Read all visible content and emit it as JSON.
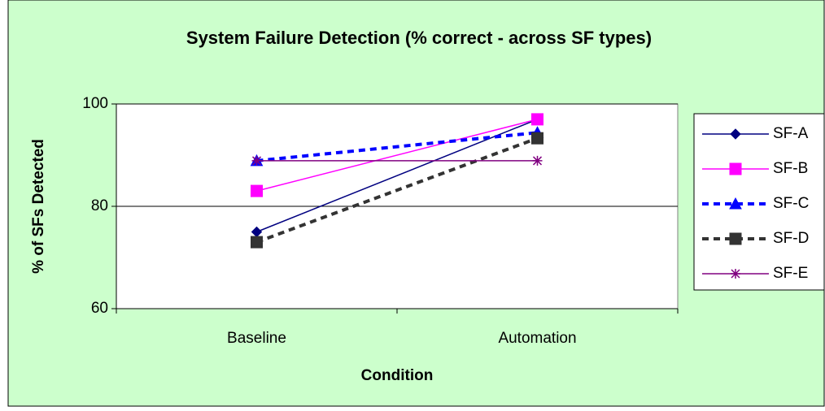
{
  "chart_data": {
    "type": "line",
    "title": "System Failure Detection (% correct - across SF types)",
    "x_label": "Condition",
    "y_label": "% of SFs Detected",
    "categories": [
      "Baseline",
      "Automation"
    ],
    "series": [
      {
        "name": "SF-A",
        "color": "#000080",
        "marker": "diamond",
        "dashed": false,
        "values": [
          75,
          97
        ]
      },
      {
        "name": "SF-B",
        "color": "#ff00ff",
        "marker": "square",
        "dashed": false,
        "values": [
          83,
          97
        ]
      },
      {
        "name": "SF-C",
        "color": "#0000ff",
        "marker": "triangle",
        "dashed": true,
        "values": [
          88.9,
          94.4
        ]
      },
      {
        "name": "SF-D",
        "color": "#333333",
        "marker": "square",
        "dashed": true,
        "values": [
          73,
          93.3
        ]
      },
      {
        "name": "SF-E",
        "color": "#800080",
        "marker": "asterisk",
        "dashed": false,
        "values": [
          88.9,
          88.9
        ]
      }
    ],
    "ylim": [
      60,
      100
    ],
    "yticks": [
      60,
      80,
      100
    ],
    "grid": true,
    "legend": "right"
  }
}
